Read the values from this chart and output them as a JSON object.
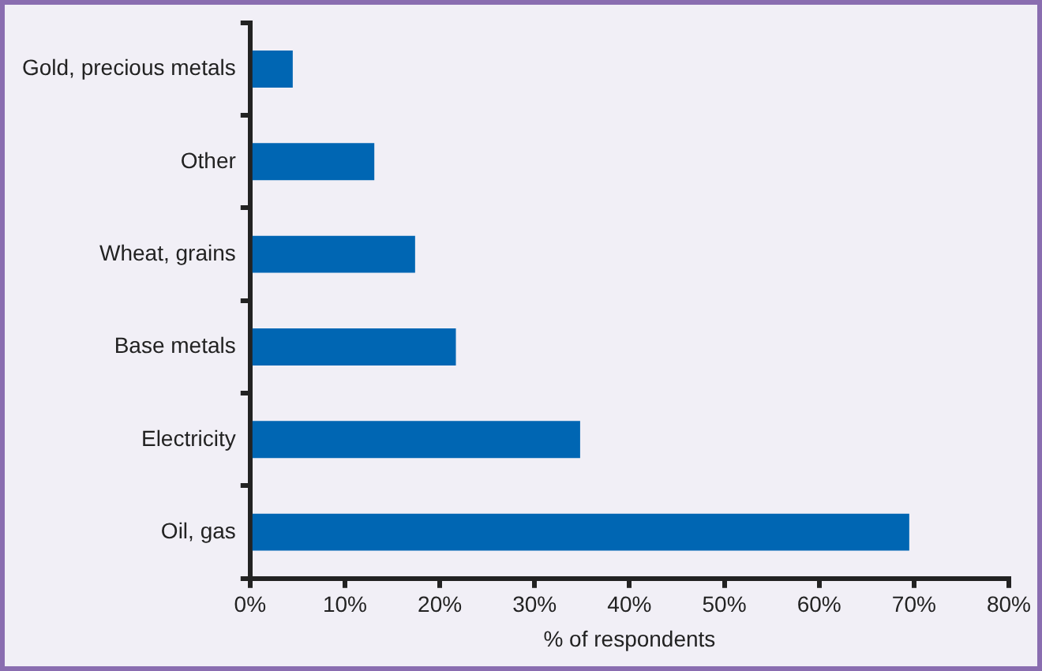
{
  "chart_data": {
    "type": "bar",
    "orientation": "horizontal",
    "xlabel": "% of respondents",
    "categories": [
      "Gold, precious metals",
      "Other",
      "Wheat, grains",
      "Base metals",
      "Electricity",
      "Oil, gas"
    ],
    "values": [
      4.5,
      13.1,
      17.4,
      21.7,
      34.8,
      69.5
    ],
    "color": "#0066b3",
    "xlim": [
      0,
      80
    ],
    "xticks": [
      {
        "value": 0,
        "label": "0%"
      },
      {
        "value": 10,
        "label": "10%"
      },
      {
        "value": 20,
        "label": "20%"
      },
      {
        "value": 30,
        "label": "30%"
      },
      {
        "value": 40,
        "label": "40%"
      },
      {
        "value": 50,
        "label": "50%"
      },
      {
        "value": 60,
        "label": "60%"
      },
      {
        "value": 70,
        "label": "70%"
      },
      {
        "value": 80,
        "label": "80%"
      }
    ],
    "grid": false,
    "legend": false
  }
}
